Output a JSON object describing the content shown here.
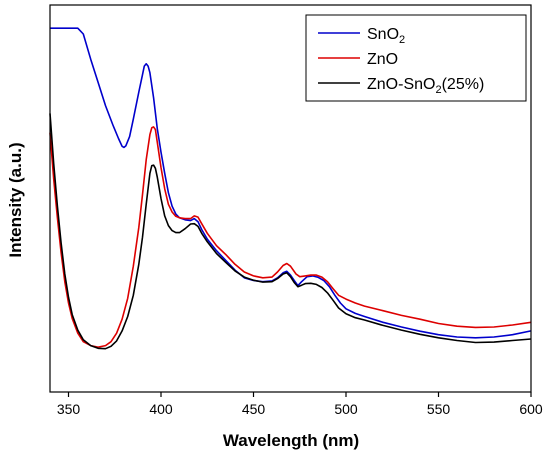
{
  "chart_data": {
    "type": "line",
    "title": "",
    "xlabel": "Wavelength (nm)",
    "ylabel": "Intensity (a.u.)",
    "xlim": [
      340,
      600
    ],
    "ylim": [
      0,
      100
    ],
    "x_ticks": [
      "350",
      "400",
      "450",
      "500",
      "550",
      "600"
    ],
    "y_ticks_labeled": false,
    "grid": false,
    "legend_position": "top-right",
    "series": [
      {
        "name": "SnO2",
        "color": "#0000cc",
        "points": [
          [
            340,
            94
          ],
          [
            350,
            94
          ],
          [
            355,
            94
          ],
          [
            358,
            92.5
          ],
          [
            362,
            86
          ],
          [
            366,
            80
          ],
          [
            370,
            74
          ],
          [
            374,
            69
          ],
          [
            377,
            65.5
          ],
          [
            379,
            63.5
          ],
          [
            380,
            63.2
          ],
          [
            381,
            63.6
          ],
          [
            383,
            66
          ],
          [
            385,
            70.5
          ],
          [
            388,
            77.5
          ],
          [
            390,
            82
          ],
          [
            391,
            84.2
          ],
          [
            392,
            84.8
          ],
          [
            393,
            84.2
          ],
          [
            394,
            82.5
          ],
          [
            396,
            76
          ],
          [
            398,
            68
          ],
          [
            400,
            62
          ],
          [
            402,
            56.5
          ],
          [
            404,
            51.5
          ],
          [
            406,
            48
          ],
          [
            408,
            46
          ],
          [
            410,
            45
          ],
          [
            413,
            44.5
          ],
          [
            416,
            44.3
          ],
          [
            418,
            44.8
          ],
          [
            420,
            44
          ],
          [
            422,
            42
          ],
          [
            425,
            39.5
          ],
          [
            430,
            36.5
          ],
          [
            435,
            34
          ],
          [
            440,
            31.5
          ],
          [
            445,
            29.5
          ],
          [
            450,
            28.8
          ],
          [
            455,
            28.5
          ],
          [
            460,
            28.7
          ],
          [
            463,
            29.5
          ],
          [
            466,
            30.8
          ],
          [
            468,
            31.2
          ],
          [
            470,
            30.2
          ],
          [
            472,
            28.8
          ],
          [
            474,
            27.5
          ],
          [
            476,
            28.5
          ],
          [
            479,
            29.8
          ],
          [
            482,
            30
          ],
          [
            485,
            29.6
          ],
          [
            488,
            28.8
          ],
          [
            491,
            27.2
          ],
          [
            494,
            25
          ],
          [
            497,
            23
          ],
          [
            500,
            21.5
          ],
          [
            505,
            20.3
          ],
          [
            510,
            19.5
          ],
          [
            520,
            18
          ],
          [
            530,
            16.8
          ],
          [
            540,
            15.7
          ],
          [
            550,
            14.8
          ],
          [
            560,
            14.2
          ],
          [
            570,
            14
          ],
          [
            580,
            14.2
          ],
          [
            590,
            14.8
          ],
          [
            600,
            15.8
          ]
        ]
      },
      {
        "name": "ZnO",
        "color": "#dd0000",
        "points": [
          [
            340,
            67
          ],
          [
            342,
            55
          ],
          [
            344,
            45
          ],
          [
            346,
            36
          ],
          [
            348,
            28.5
          ],
          [
            350,
            23
          ],
          [
            352,
            19
          ],
          [
            355,
            15.2
          ],
          [
            358,
            13
          ],
          [
            362,
            12
          ],
          [
            366,
            11.6
          ],
          [
            370,
            12
          ],
          [
            373,
            13
          ],
          [
            376,
            15.2
          ],
          [
            379,
            18.8
          ],
          [
            382,
            24.2
          ],
          [
            385,
            32.5
          ],
          [
            388,
            42.5
          ],
          [
            390,
            51
          ],
          [
            392,
            60
          ],
          [
            394,
            66.5
          ],
          [
            395,
            68.3
          ],
          [
            396,
            68.5
          ],
          [
            397,
            67.8
          ],
          [
            398,
            64.5
          ],
          [
            400,
            58
          ],
          [
            402,
            52.5
          ],
          [
            404,
            48.5
          ],
          [
            406,
            46.5
          ],
          [
            408,
            45.4
          ],
          [
            410,
            45
          ],
          [
            413,
            44.8
          ],
          [
            416,
            44.8
          ],
          [
            418,
            45.5
          ],
          [
            420,
            45.2
          ],
          [
            422,
            43.5
          ],
          [
            425,
            41
          ],
          [
            430,
            37.8
          ],
          [
            435,
            35.5
          ],
          [
            440,
            33
          ],
          [
            445,
            31
          ],
          [
            450,
            30
          ],
          [
            455,
            29.5
          ],
          [
            460,
            29.7
          ],
          [
            463,
            31
          ],
          [
            466,
            32.7
          ],
          [
            468,
            33.2
          ],
          [
            470,
            32.5
          ],
          [
            473,
            30.5
          ],
          [
            475,
            29.8
          ],
          [
            478,
            30
          ],
          [
            481,
            30.2
          ],
          [
            484,
            30.2
          ],
          [
            487,
            29.7
          ],
          [
            490,
            28.5
          ],
          [
            493,
            26.7
          ],
          [
            496,
            25
          ],
          [
            500,
            24
          ],
          [
            505,
            23
          ],
          [
            510,
            22.2
          ],
          [
            520,
            21
          ],
          [
            530,
            19.8
          ],
          [
            540,
            18.8
          ],
          [
            550,
            17.7
          ],
          [
            560,
            17
          ],
          [
            570,
            16.7
          ],
          [
            580,
            16.8
          ],
          [
            590,
            17.3
          ],
          [
            600,
            18
          ]
        ]
      },
      {
        "name": "ZnO-SnO2(25%)",
        "color": "#000000",
        "points": [
          [
            340,
            72
          ],
          [
            342,
            59
          ],
          [
            344,
            48
          ],
          [
            346,
            38.5
          ],
          [
            348,
            30.5
          ],
          [
            350,
            24.5
          ],
          [
            352,
            20
          ],
          [
            355,
            16
          ],
          [
            358,
            13.5
          ],
          [
            362,
            12
          ],
          [
            366,
            11.3
          ],
          [
            370,
            11.2
          ],
          [
            373,
            11.8
          ],
          [
            376,
            13.2
          ],
          [
            379,
            15.8
          ],
          [
            382,
            19.5
          ],
          [
            385,
            25
          ],
          [
            388,
            33
          ],
          [
            390,
            40
          ],
          [
            392,
            48.5
          ],
          [
            394,
            56.5
          ],
          [
            395,
            58.5
          ],
          [
            396,
            58.6
          ],
          [
            397,
            57.8
          ],
          [
            398,
            55.5
          ],
          [
            400,
            50
          ],
          [
            402,
            45.5
          ],
          [
            404,
            43
          ],
          [
            406,
            41.7
          ],
          [
            408,
            41.2
          ],
          [
            410,
            41.2
          ],
          [
            413,
            42.2
          ],
          [
            416,
            43.4
          ],
          [
            418,
            43.5
          ],
          [
            420,
            42.8
          ],
          [
            422,
            41
          ],
          [
            425,
            38.8
          ],
          [
            430,
            35.8
          ],
          [
            435,
            33.5
          ],
          [
            440,
            31.3
          ],
          [
            445,
            29.7
          ],
          [
            450,
            28.9
          ],
          [
            455,
            28.4
          ],
          [
            460,
            28.5
          ],
          [
            463,
            29.3
          ],
          [
            466,
            30.5
          ],
          [
            468,
            30.8
          ],
          [
            470,
            29.8
          ],
          [
            472,
            28.3
          ],
          [
            474,
            27.2
          ],
          [
            476,
            27.6
          ],
          [
            478,
            28
          ],
          [
            481,
            28.1
          ],
          [
            484,
            27.8
          ],
          [
            487,
            27
          ],
          [
            490,
            25.6
          ],
          [
            493,
            23.7
          ],
          [
            496,
            21.7
          ],
          [
            500,
            20.2
          ],
          [
            505,
            19.2
          ],
          [
            510,
            18.6
          ],
          [
            520,
            17.2
          ],
          [
            530,
            16
          ],
          [
            540,
            14.9
          ],
          [
            550,
            14
          ],
          [
            560,
            13.3
          ],
          [
            570,
            12.8
          ],
          [
            580,
            12.9
          ],
          [
            590,
            13.3
          ],
          [
            600,
            13.7
          ]
        ]
      }
    ],
    "legend": [
      {
        "base": "SnO",
        "sub": "2",
        "rest": ""
      },
      {
        "base": "ZnO",
        "sub": "",
        "rest": ""
      },
      {
        "base": "ZnO-SnO",
        "sub": "2",
        "rest": "(25%)"
      }
    ]
  }
}
